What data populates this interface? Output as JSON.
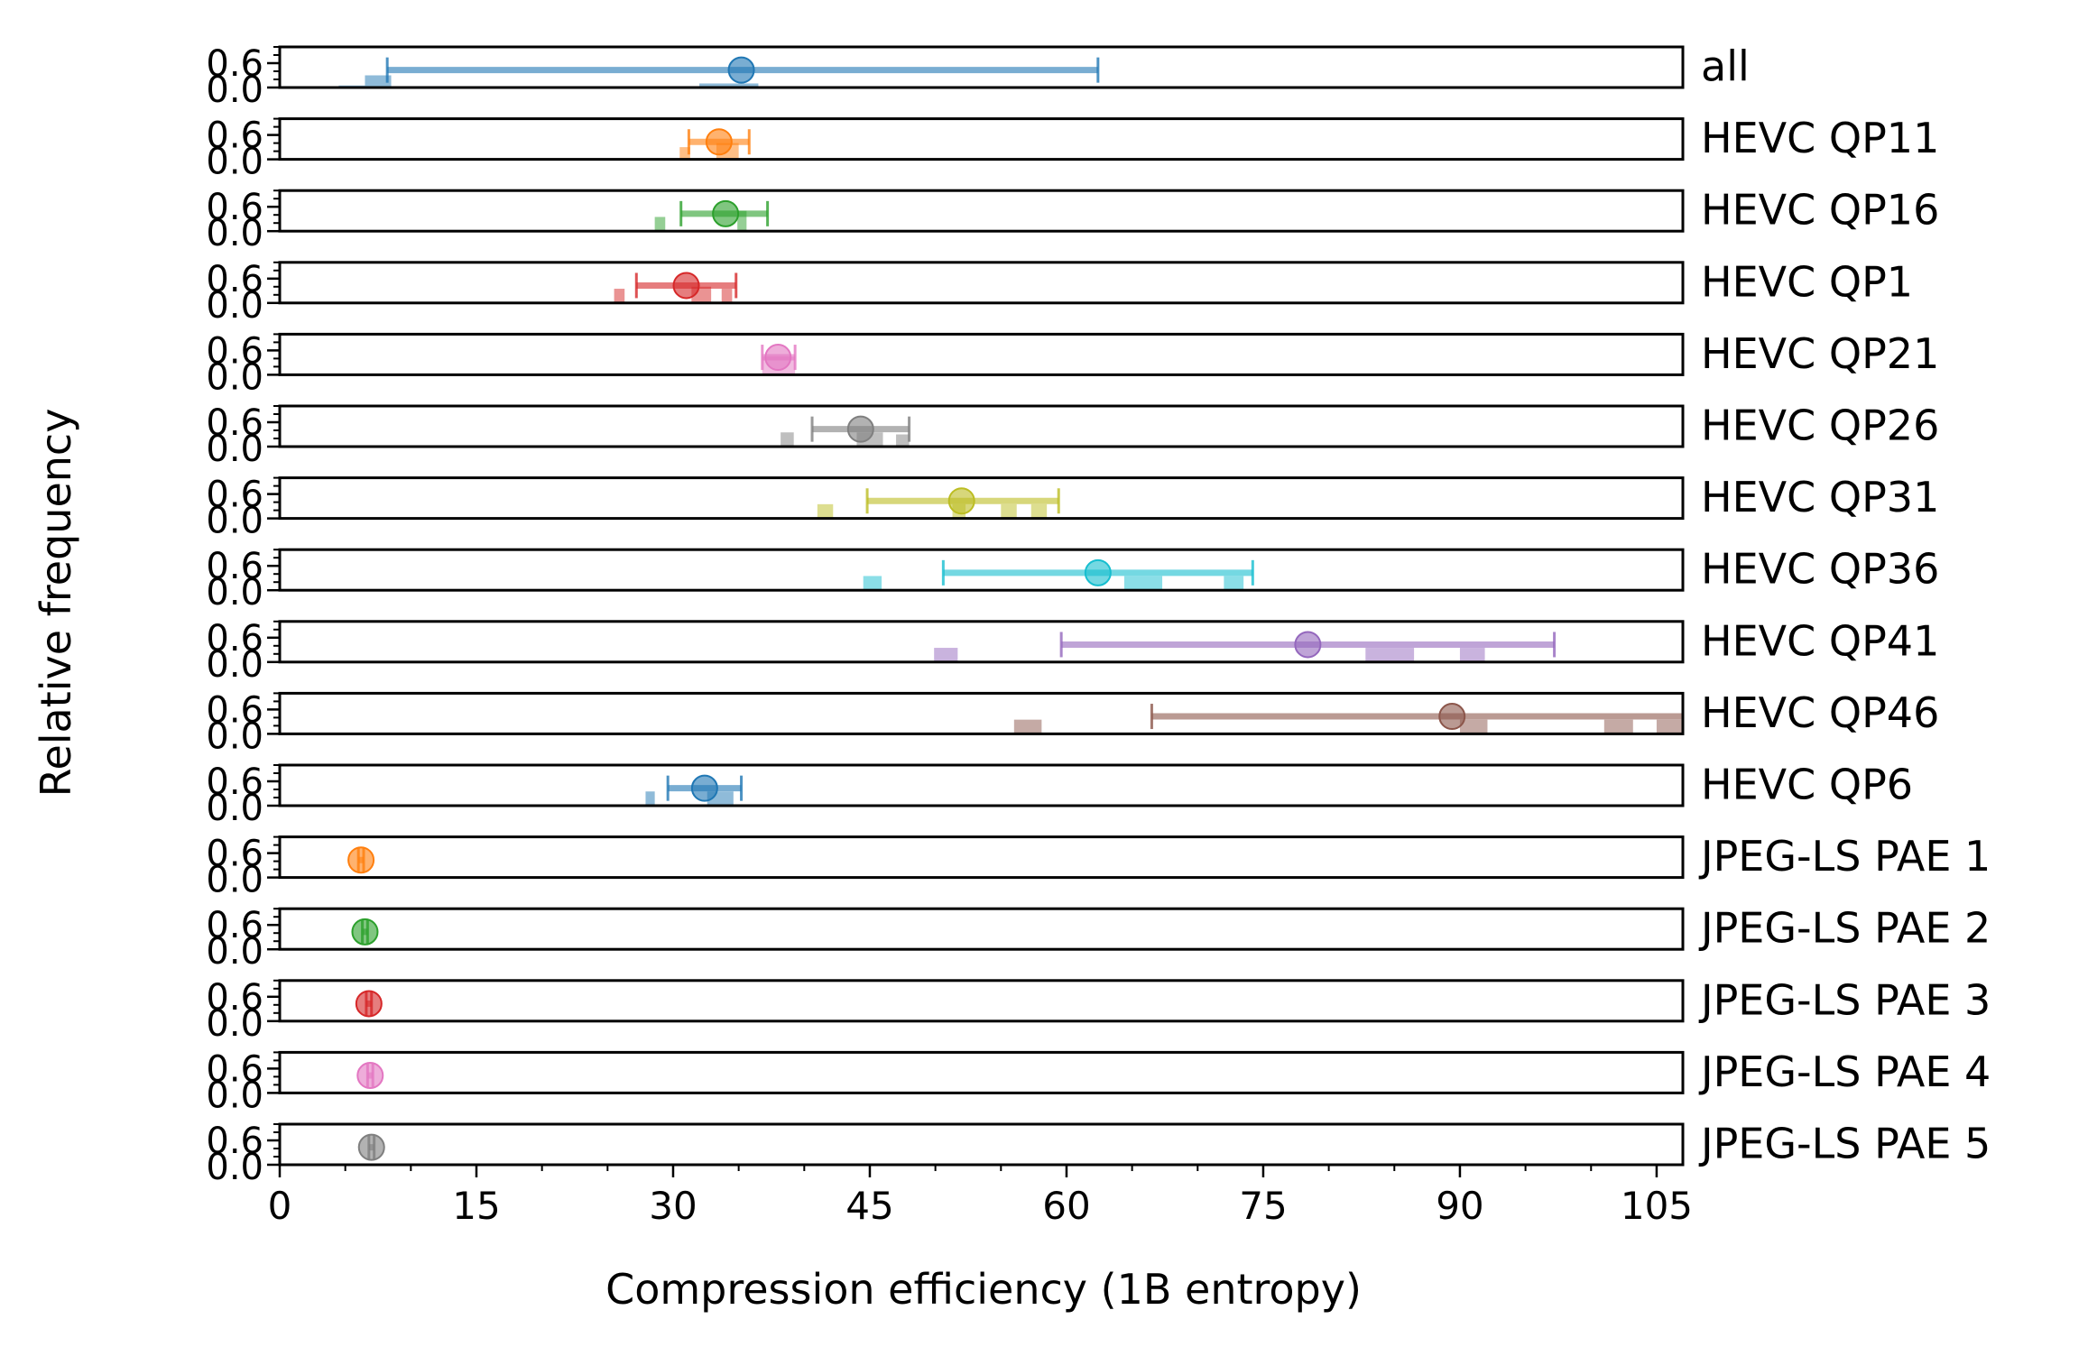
{
  "chart_data": {
    "type": "scatter",
    "xlabel": "Compression efficiency (1B entropy)",
    "ylabel": "Relative frequency",
    "xlim": [
      0,
      107
    ],
    "xticks": [
      "0",
      "15",
      "30",
      "45",
      "60",
      "75",
      "90",
      "105"
    ],
    "yticks": [
      "0.0",
      "0.6"
    ],
    "ylim": [
      0,
      1
    ],
    "grid": false,
    "legend": "none",
    "panels": [
      {
        "name": "all",
        "color": "#1f77b4",
        "mean": 35.2,
        "low": 8.2,
        "high": 62.4,
        "hist": [
          [
            4.5,
            6.5,
            0.05
          ],
          [
            6.5,
            8.5,
            0.3
          ],
          [
            32.0,
            36.5,
            0.1
          ]
        ]
      },
      {
        "name": "HEVC QP11",
        "color": "#ff7f0e",
        "mean": 33.5,
        "low": 31.2,
        "high": 35.8,
        "hist": [
          [
            30.5,
            31.3,
            0.3
          ],
          [
            33.3,
            35.0,
            0.4
          ]
        ]
      },
      {
        "name": "HEVC QP16",
        "color": "#2ca02c",
        "mean": 34.0,
        "low": 30.6,
        "high": 37.2,
        "hist": [
          [
            28.6,
            29.4,
            0.35
          ],
          [
            34.9,
            35.6,
            0.5
          ]
        ]
      },
      {
        "name": "HEVC QP1",
        "color": "#d62728",
        "mean": 31.0,
        "low": 27.2,
        "high": 34.8,
        "hist": [
          [
            25.5,
            26.3,
            0.35
          ],
          [
            31.4,
            32.9,
            0.4
          ],
          [
            33.7,
            34.5,
            0.35
          ]
        ]
      },
      {
        "name": "HEVC QP21",
        "color": "#e377c2",
        "mean": 38.0,
        "low": 36.8,
        "high": 39.3,
        "hist": [
          [
            36.8,
            39.3,
            0.45
          ]
        ]
      },
      {
        "name": "HEVC QP26",
        "color": "#7f7f7f",
        "mean": 44.3,
        "low": 40.6,
        "high": 48.0,
        "hist": [
          [
            38.2,
            39.2,
            0.35
          ],
          [
            44.0,
            46.0,
            0.35
          ],
          [
            47.0,
            48.0,
            0.3
          ]
        ]
      },
      {
        "name": "HEVC QP31",
        "color": "#bcbd22",
        "mean": 52.0,
        "low": 44.8,
        "high": 59.4,
        "hist": [
          [
            41.0,
            42.2,
            0.35
          ],
          [
            51.3,
            52.3,
            0.35
          ],
          [
            55.0,
            56.2,
            0.35
          ],
          [
            57.3,
            58.5,
            0.35
          ]
        ]
      },
      {
        "name": "HEVC QP36",
        "color": "#17becf",
        "mean": 62.4,
        "low": 50.6,
        "high": 74.2,
        "hist": [
          [
            44.5,
            45.9,
            0.35
          ],
          [
            64.4,
            67.3,
            0.35
          ],
          [
            72.0,
            73.5,
            0.35
          ]
        ]
      },
      {
        "name": "HEVC QP41",
        "color": "#9467bd",
        "mean": 78.4,
        "low": 59.6,
        "high": 97.2,
        "hist": [
          [
            49.9,
            51.7,
            0.35
          ],
          [
            82.8,
            86.5,
            0.35
          ],
          [
            90.0,
            91.9,
            0.35
          ]
        ]
      },
      {
        "name": "HEVC QP46",
        "color": "#8c564b",
        "mean": 89.4,
        "low": 66.5,
        "high": 112.0,
        "hist": [
          [
            56.0,
            58.1,
            0.35
          ],
          [
            90.0,
            92.1,
            0.35
          ],
          [
            101.0,
            103.2,
            0.35
          ],
          [
            105.0,
            107.0,
            0.35
          ]
        ]
      },
      {
        "name": "HEVC QP6",
        "color": "#1f77b4",
        "mean": 32.4,
        "low": 29.6,
        "high": 35.2,
        "hist": [
          [
            27.9,
            28.6,
            0.35
          ],
          [
            32.6,
            34.6,
            0.35
          ]
        ]
      },
      {
        "name": "JPEG-LS PAE 1",
        "color": "#ff7f0e",
        "mean": 6.2,
        "low": 6.0,
        "high": 6.4,
        "hist": []
      },
      {
        "name": "JPEG-LS PAE 2",
        "color": "#2ca02c",
        "mean": 6.5,
        "low": 6.3,
        "high": 6.7,
        "hist": []
      },
      {
        "name": "JPEG-LS PAE 3",
        "color": "#d62728",
        "mean": 6.8,
        "low": 6.6,
        "high": 7.0,
        "hist": []
      },
      {
        "name": "JPEG-LS PAE 4",
        "color": "#e377c2",
        "mean": 6.9,
        "low": 6.7,
        "high": 7.1,
        "hist": []
      },
      {
        "name": "JPEG-LS PAE 5",
        "color": "#7f7f7f",
        "mean": 7.0,
        "low": 6.8,
        "high": 7.2,
        "hist": []
      }
    ]
  }
}
